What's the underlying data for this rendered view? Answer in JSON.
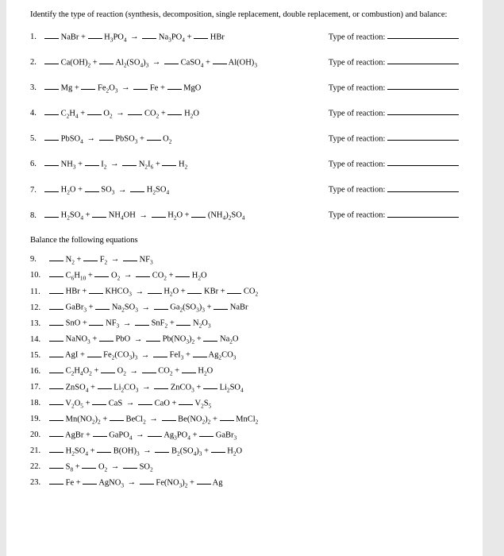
{
  "instructions": "Identify the type of reaction (synthesis, decomposition, single replacement, double replacement, or combustion) and balance:",
  "type_label": "Type of reaction:",
  "section2_title": "Balance the following equations",
  "arrow": "→",
  "section1": [
    {
      "n": "1.",
      "parts": [
        "NaBr +",
        "H₃PO₄",
        "Na₃PO₄ +",
        "HBr"
      ]
    },
    {
      "n": "2.",
      "parts": [
        "Ca(OH)₂ +",
        "Al₂(SO₄)₃",
        "CaSO₄ +",
        "Al(OH)₃"
      ]
    },
    {
      "n": "3.",
      "parts": [
        "Mg +",
        "Fe₂O₃",
        "Fe +",
        "MgO"
      ]
    },
    {
      "n": "4.",
      "parts": [
        "C₂H₄ +",
        "O₂",
        "CO₂ +",
        "H₂O"
      ]
    },
    {
      "n": "5.",
      "parts": [
        "PbSO₄",
        "",
        "PbSO₃ +",
        "O₂"
      ],
      "single_left": true
    },
    {
      "n": "6.",
      "parts": [
        "NH₃ +",
        "I₂",
        "N₂I₆ +",
        "H₂"
      ]
    },
    {
      "n": "7.",
      "parts": [
        "H₂O +",
        "SO₃",
        "H₂SO₄",
        ""
      ],
      "single_right": true
    },
    {
      "n": "8.",
      "parts": [
        "H₂SO₄ +",
        "NH₄OH",
        "H₂O +",
        "(NH₄)₂SO₄"
      ]
    }
  ],
  "section2": [
    {
      "n": "9.",
      "parts": [
        "N₂ +",
        "F₂",
        "NF₃"
      ]
    },
    {
      "n": "10.",
      "parts": [
        "C₆H₁₀ +",
        "O₂",
        "CO₂ +",
        "H₂O"
      ]
    },
    {
      "n": "11.",
      "parts": [
        "HBr +",
        "KHCO₃",
        "H₂O +",
        "KBr +",
        "CO₂"
      ]
    },
    {
      "n": "12.",
      "parts": [
        "GaBr₃ +",
        "Na₂SO₃",
        "Ga₂(SO₃)₃ +",
        "NaBr"
      ]
    },
    {
      "n": "13.",
      "parts": [
        "SnO +",
        "NF₃",
        "SnF₂ +",
        "N₂O₃"
      ]
    },
    {
      "n": "14.",
      "parts": [
        "NaNO₃ +",
        "PbO",
        "Pb(NO₃)₂ +",
        "Na₂O"
      ]
    },
    {
      "n": "15.",
      "parts": [
        "AgI +",
        "Fe₂(CO₃)₃",
        "FeI₃ +",
        "Ag₂CO₃"
      ]
    },
    {
      "n": "16.",
      "parts": [
        "C₂H₄O₂ +",
        "O₂",
        "CO₂ +",
        "H₂O"
      ]
    },
    {
      "n": "17.",
      "parts": [
        "ZnSO₄ +",
        "Li₂CO₃",
        "ZnCO₃ +",
        "Li₂SO₄"
      ]
    },
    {
      "n": "18.",
      "parts": [
        "V₂O₅ +",
        "CaS",
        "CaO +",
        "V₂S₅"
      ]
    },
    {
      "n": "19.",
      "parts": [
        "Mn(NO₂)₂ +",
        "BeCl₂",
        "Be(NO₂)₂ +",
        "MnCl₂"
      ]
    },
    {
      "n": "20.",
      "parts": [
        "AgBr +",
        "GaPO₄",
        "Ag₃PO₄ +",
        "GaBr₃"
      ]
    },
    {
      "n": "21.",
      "parts": [
        "H₂SO₄ +",
        "B(OH)₃",
        "B₂(SO₄)₃ +",
        "H₂O"
      ]
    },
    {
      "n": "22.",
      "parts": [
        "S₈ +",
        "O₂",
        "SO₂"
      ]
    },
    {
      "n": "23.",
      "parts": [
        "Fe +",
        "AgNO₃",
        "Fe(NO₃)₂ +",
        "Ag"
      ]
    }
  ]
}
